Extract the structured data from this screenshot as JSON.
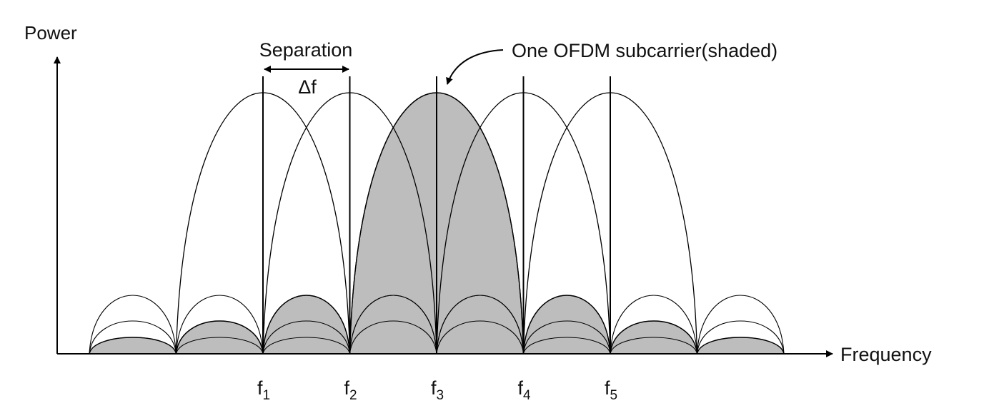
{
  "diagram": {
    "y_axis_label": "Power",
    "x_axis_label": "Frequency",
    "separation_label": "Separation",
    "delta_label": "Δf",
    "annotation": "One OFDM subcarrier(shaded)",
    "subcarriers": [
      {
        "base": "f",
        "sub": "1"
      },
      {
        "base": "f",
        "sub": "2"
      },
      {
        "base": "f",
        "sub": "3"
      },
      {
        "base": "f",
        "sub": "4"
      },
      {
        "base": "f",
        "sub": "5"
      }
    ],
    "shaded_subcarrier_index": 2
  },
  "colors": {
    "line": "#000000",
    "shade": "#bdbdbd"
  }
}
